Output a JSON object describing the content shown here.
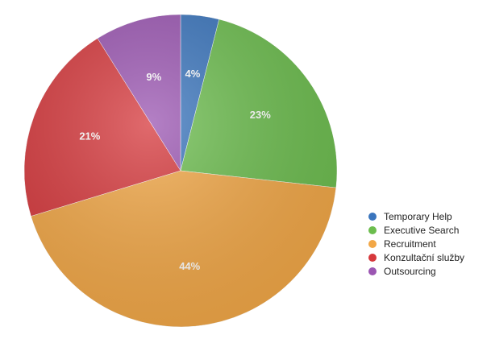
{
  "chart_data": {
    "type": "pie",
    "categories": [
      "Temporary Help",
      "Executive Search",
      "Recruitment",
      "Konzultační služby",
      "Outsourcing"
    ],
    "values": [
      4,
      23,
      44,
      21,
      9
    ],
    "value_labels": [
      "4%",
      "23%",
      "44%",
      "21%",
      "9%"
    ],
    "colors": [
      "#3a75bd",
      "#6cbd4e",
      "#f2a746",
      "#d6383c",
      "#9b56b2"
    ],
    "legend": "right"
  }
}
